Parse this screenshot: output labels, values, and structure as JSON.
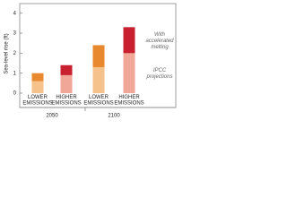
{
  "chart_data": {
    "type": "bar",
    "stacked": true,
    "y_label": "Sea-level rise (ft)",
    "categories": [
      "LOWER EMISSIONS",
      "HIGHER EMISSIONS",
      "LOWER EMISSIONS",
      "HIGHER EMISSIONS"
    ],
    "x_groups": [
      "2050",
      "2100"
    ],
    "series": [
      {
        "name": "IPCC projections",
        "colors": [
          "#f6c28c",
          "#f1a797",
          "#f6c28c",
          "#f1a797"
        ],
        "values": [
          0.6,
          0.9,
          1.3,
          2.0
        ]
      },
      {
        "name": "With accelerated melting",
        "colors": [
          "#e8892f",
          "#c8202f",
          "#e8892f",
          "#c8202f"
        ],
        "values": [
          0.4,
          0.5,
          1.1,
          1.3
        ]
      }
    ],
    "ylim": [
      0,
      4.3
    ],
    "yticks": [
      0,
      1,
      2,
      3,
      4
    ]
  }
}
